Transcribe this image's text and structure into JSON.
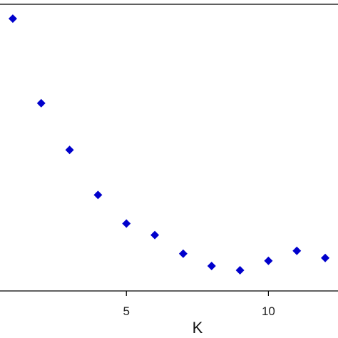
{
  "chart_data": {
    "type": "scatter",
    "title": "",
    "xlabel": "K",
    "ylabel": "",
    "xlim": [
      0.55,
      12.45
    ],
    "ylim": [
      0,
      10
    ],
    "grid": false,
    "marker": "diamond",
    "marker_color": "#0000cc",
    "x_ticks": [
      5,
      10
    ],
    "x_tick_labels": [
      "5",
      "10"
    ],
    "series": [
      {
        "x": [
          1,
          2,
          3,
          4,
          5,
          6,
          7,
          8,
          9,
          10,
          11,
          12
        ],
        "y": [
          9.5,
          6.55,
          4.92,
          3.35,
          2.35,
          1.95,
          1.3,
          0.87,
          0.72,
          1.05,
          1.4,
          1.15
        ]
      }
    ]
  }
}
